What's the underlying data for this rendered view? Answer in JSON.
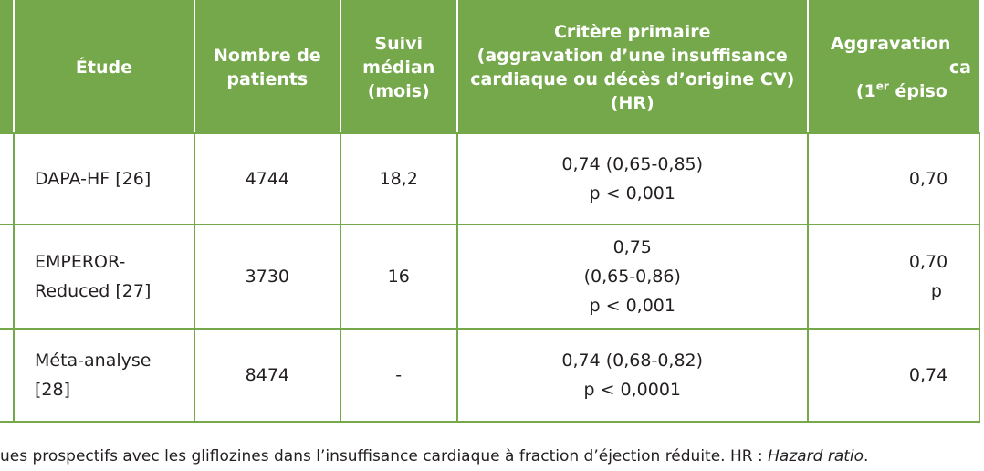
{
  "table": {
    "headers": {
      "study": "Étude",
      "patients_line1": "Nombre de",
      "patients_line2": "patients",
      "followup_line1": "Suivi",
      "followup_line2": "médian",
      "followup_line3": "(mois)",
      "primary_line1": "Critère primaire",
      "primary_line2": "(aggravation d’une insuffisance",
      "primary_line3": "cardiaque ou décès d’origine CV)",
      "primary_line4": "(HR)",
      "worsening_line1": "Aggravation",
      "worsening_line2": "ca",
      "worsening_line3a": "(1",
      "worsening_line3sup": "er",
      "worsening_line3b": " épiso"
    },
    "rows": [
      {
        "study": "DAPA-HF [26]",
        "patients": "4744",
        "followup": "18,2",
        "primary_line1": "0,74 (0,65-0,85)",
        "primary_line2": "p < 0,001",
        "worsening_line1": "0,70"
      },
      {
        "study_line1": "EMPEROR-",
        "study_line2": "Reduced [27]",
        "patients": "3730",
        "followup": "16",
        "primary_line1": "0,75",
        "primary_line2": "(0,65-0,86)",
        "primary_line3": "p < 0,001",
        "worsening_line1": "0,70",
        "worsening_line2": "p"
      },
      {
        "study": "Méta-analyse [28]",
        "patients": "8474",
        "followup": "-",
        "primary_line1": "0,74 (0,68-0,82)",
        "primary_line2": "p < 0,0001",
        "worsening_line1": "0,74"
      }
    ]
  },
  "caption": {
    "text": "ues prospectifs avec les gliflozines dans l’insuffisance cardiaque à fraction d’éjection réduite. HR : ",
    "italic": "Hazard ratio",
    "end": "."
  },
  "colors": {
    "header_bg": "#74a84a",
    "border": "#74a84a",
    "text": "#231f20"
  }
}
